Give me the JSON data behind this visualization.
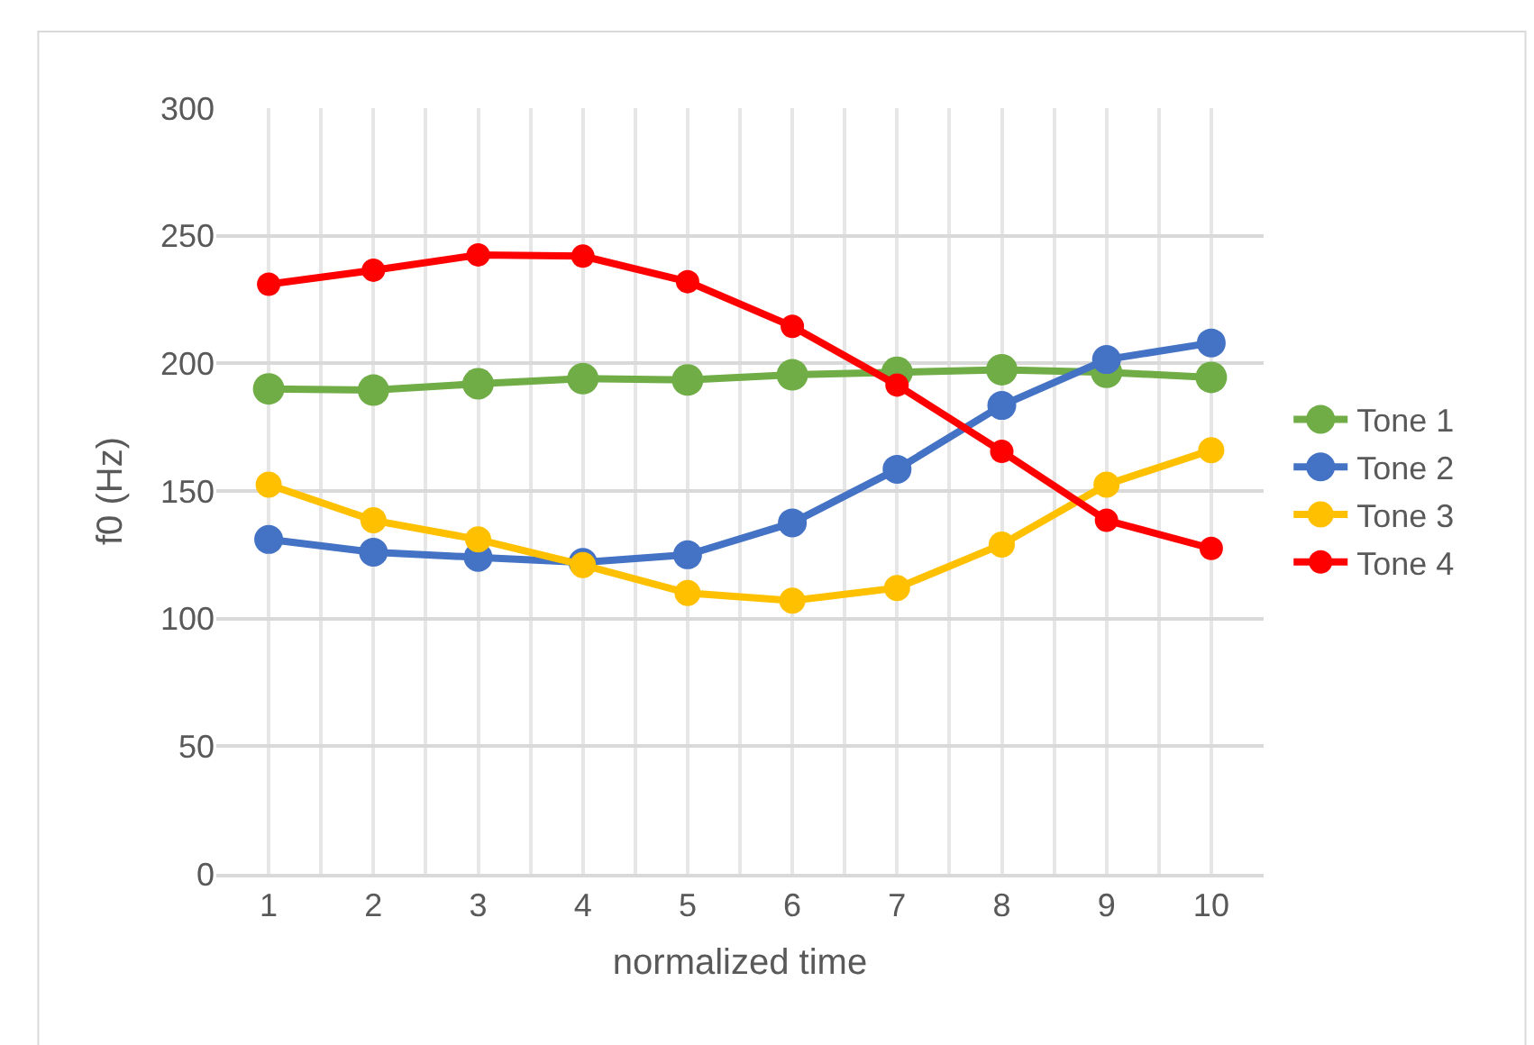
{
  "chart_data": {
    "type": "line",
    "xlabel": "normalized time",
    "ylabel": "f0 (Hz)",
    "x": [
      1,
      2,
      3,
      4,
      5,
      6,
      7,
      8,
      9,
      10
    ],
    "xlim": [
      0.5,
      10.5
    ],
    "xticks": [
      1,
      2,
      3,
      4,
      5,
      6,
      7,
      8,
      9,
      10
    ],
    "ylim": [
      0,
      300
    ],
    "yticks": [
      0,
      50,
      100,
      150,
      200,
      250,
      300
    ],
    "grid": true,
    "legend": "right",
    "marker": "circle",
    "line_style": "solid",
    "series": [
      {
        "name": "Tone 1",
        "color": "#70ad47",
        "values": [
          190,
          189.5,
          192,
          194,
          193.5,
          195.5,
          196.5,
          197.5,
          196.5,
          194.5
        ]
      },
      {
        "name": "Tone 2",
        "color": "#4472c4",
        "values": [
          131,
          126,
          124,
          122,
          125,
          137.5,
          158.5,
          183.5,
          201.5,
          208
        ]
      },
      {
        "name": "Tone 3",
        "color": "#ffc000",
        "values": [
          152.5,
          138.5,
          131,
          121,
          110,
          107,
          112,
          129,
          152.5,
          166
        ]
      },
      {
        "name": "Tone 4",
        "color": "#ff0000",
        "values": [
          231,
          236.5,
          242.5,
          242,
          232,
          214.5,
          191.5,
          165.5,
          138.5,
          127.5
        ]
      }
    ]
  }
}
